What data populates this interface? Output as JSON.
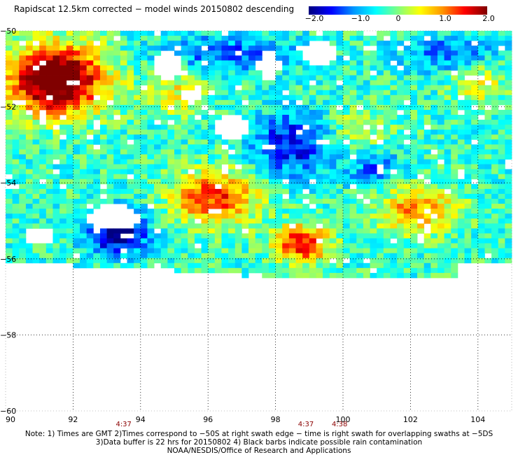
{
  "title": "Rapidscat 12.5km corrected − model winds 20150802 descending",
  "colorbar": {
    "labels": [
      "−2.0",
      "−1.0",
      "0",
      "1.0",
      "2.0"
    ],
    "range": [
      -2.0,
      2.0
    ],
    "colors": [
      "#000080",
      "#0000ff",
      "#0096ff",
      "#00ffff",
      "#80ff80",
      "#ffff00",
      "#ff9600",
      "#ff0000",
      "#800000"
    ]
  },
  "chart_data": {
    "type": "heatmap",
    "title": "Rapidscat 12.5km corrected − model winds 20150802 descending",
    "xlabel": "",
    "ylabel": "",
    "xlim": [
      90,
      105
    ],
    "ylim": [
      -60,
      -50
    ],
    "x_ticks": [
      "90",
      "92",
      "94",
      "96",
      "98",
      "100",
      "102",
      "104"
    ],
    "y_ticks": [
      "−50",
      "−52",
      "−54",
      "−56",
      "−58",
      "−60"
    ],
    "grid": true,
    "value_range": [
      -2.0,
      2.0
    ],
    "data_extent": {
      "lon": [
        90,
        105
      ],
      "lat": [
        -56.4,
        -50
      ]
    },
    "time_labels": [
      {
        "text": "4:37",
        "lon": 93.5
      },
      {
        "text": "4:37",
        "lon": 98.9
      },
      {
        "text": "4:38",
        "lon": 99.9
      }
    ]
  },
  "notes": [
    "Note: 1) Times are GMT 2)Times correspond to −50S at right swath edge − time is right swath for overlapping swaths at −5DS",
    "3)Data buffer is 22 hrs for 20150802 4) Black barbs indicate possible rain contamination",
    "NOAA/NESDIS/Office of Research and Applications"
  ]
}
